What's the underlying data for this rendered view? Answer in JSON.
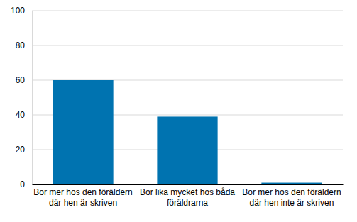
{
  "chart_data": {
    "type": "bar",
    "categories": [
      "Bor mer hos den föräldern\ndär hen är skriven",
      "Bor lika mycket hos båda\nföräldrarna",
      "Bor mer hos den föräldern\ndär hen inte är skriven"
    ],
    "values": [
      60,
      39,
      1
    ],
    "color": "#0073b0",
    "ylim": [
      0,
      100
    ],
    "yticks": [
      0,
      20,
      40,
      60,
      80,
      100
    ],
    "grid": true
  }
}
